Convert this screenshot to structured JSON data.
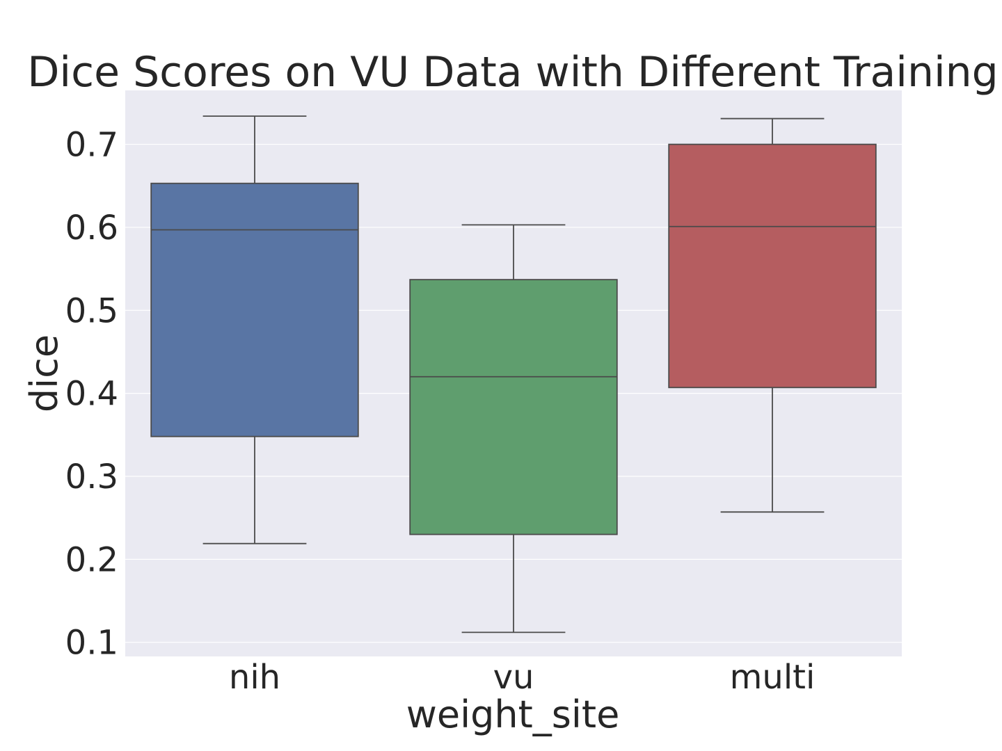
{
  "chart_data": {
    "type": "box",
    "title": "Dice Scores on VU Data with Different Training",
    "xlabel": "weight_site",
    "ylabel": "dice",
    "ylim": [
      0.083,
      0.765
    ],
    "yticks": [
      "0.1",
      "0.2",
      "0.3",
      "0.4",
      "0.5",
      "0.6",
      "0.7"
    ],
    "grid": true,
    "background_color": "#eaeaf2",
    "categories": [
      "nih",
      "vu",
      "multi"
    ],
    "boxes": [
      {
        "category": "nih",
        "whisker_low": 0.219,
        "q1": 0.348,
        "median": 0.597,
        "q3": 0.653,
        "whisker_high": 0.734,
        "color": "#5975a4"
      },
      {
        "category": "vu",
        "whisker_low": 0.112,
        "q1": 0.23,
        "median": 0.42,
        "q3": 0.537,
        "whisker_high": 0.603,
        "color": "#5f9e6e"
      },
      {
        "category": "multi",
        "whisker_low": 0.257,
        "q1": 0.407,
        "median": 0.601,
        "q3": 0.7,
        "whisker_high": 0.731,
        "color": "#b55d60"
      }
    ]
  }
}
